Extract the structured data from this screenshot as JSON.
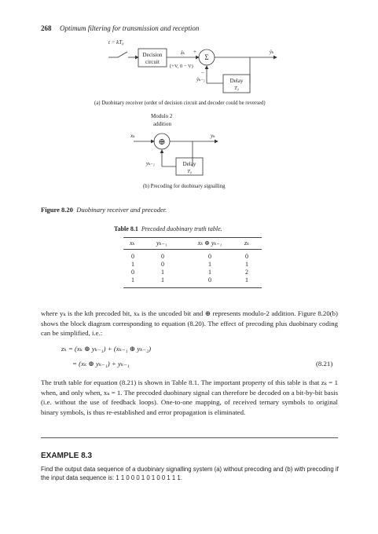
{
  "header": {
    "page_number": "268",
    "running_title": "Optimum filtering for transmission and reception"
  },
  "figure_a": {
    "sample_label": "t = kT₀",
    "decision_label_1": "Decision",
    "decision_label_2": "circuit",
    "levels": "(+V, 0 − V)",
    "z_hat": "ẑₖ",
    "plus": "+",
    "minus": "−",
    "sigma": "Σ",
    "y_hat": "ŷₖ",
    "y_hat_prev": "ŷₖ₋₁",
    "delay_1": "Delay",
    "delay_2": "T₀",
    "caption": "(a) Duobinary receiver (order of decision circuit and decoder could be reversed)"
  },
  "figure_b": {
    "mod_label_1": "Modulo 2",
    "mod_label_2": "addition",
    "xk": "xₖ",
    "yk": "yₖ",
    "yk_prev": "yₖ₋₁",
    "oplus": "⊕",
    "delay_1": "Delay",
    "delay_2": "T₀",
    "caption": "(b) Precoding for duobinary signalling"
  },
  "figure_caption": {
    "label": "Figure 8.20",
    "text": "Duobinary receiver and precoder."
  },
  "table": {
    "label": "Table 8.1",
    "title": "Precoded duobinary truth table.",
    "headers": [
      "xₖ",
      "yₖ₋₁",
      "xₖ ⊕ yₖ₋₁",
      "zₖ"
    ],
    "rows": [
      [
        "0",
        "0",
        "0",
        "0"
      ],
      [
        "1",
        "0",
        "1",
        "1"
      ],
      [
        "0",
        "1",
        "1",
        "2"
      ],
      [
        "1",
        "1",
        "0",
        "1"
      ]
    ]
  },
  "para1": "where yₖ is the kth precoded bit, xₖ is the uncoded bit and ⊕ represents modulo-2 addition. Figure 8.20(b) shows the block diagram corresponding to equation (8.20). The effect of precoding plus duobinary coding can be simplified, i.e.:",
  "eq_line1": "zₖ = (xₖ ⊕ yₖ₋₁) + (xₖ₋₁ ⊕ yₖ₋₂)",
  "eq_line2": "= (xₖ ⊕ yₖ₋₁) + yₖ₋₁",
  "eq_number": "(8.21)",
  "para2": "The truth table for equation (8.21) is shown in Table 8.1. The important property of this table is that zₖ = 1 when, and only when, xₖ = 1. The precoded duobinary signal can therefore be decoded on a bit-by-bit basis (i.e. without the use of feedback loops). One-to-one mapping, of received ternary symbols to original binary symbols, is thus re-established and error propagation is eliminated.",
  "example": {
    "heading": "EXAMPLE 8.3",
    "text": "Find the output data sequence of a duobinary signalling system (a) without precoding and (b) with precoding if the input data sequence is: 1 1 0 0 0 1 0 1 0 0 1 1 1."
  }
}
